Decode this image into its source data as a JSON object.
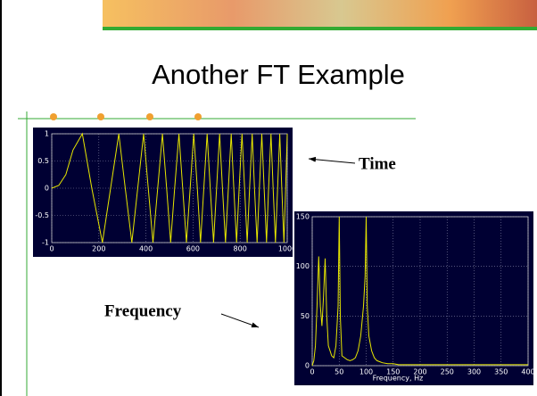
{
  "slide": {
    "title": "Another FT Example",
    "time_label": "Time",
    "frequency_label": "Frequency"
  },
  "chart_data": [
    {
      "type": "line",
      "color": "#e6e600",
      "grid": true,
      "x": [
        0,
        30,
        60,
        90,
        130,
        170,
        215,
        250,
        285,
        312,
        340,
        365,
        390,
        410,
        430,
        450,
        470,
        488,
        505,
        522,
        540,
        556,
        572,
        588,
        603,
        618,
        632,
        646,
        660,
        673,
        687,
        700,
        713,
        725,
        738,
        750,
        762,
        773,
        785,
        796,
        808,
        819,
        830,
        840,
        851,
        861,
        872,
        882,
        892,
        902,
        912,
        921,
        931,
        940,
        950,
        959,
        968,
        977,
        986,
        993,
        1000
      ],
      "values": [
        0,
        0.05,
        0.25,
        0.7,
        1,
        0,
        -1,
        0,
        1,
        0,
        -1,
        0,
        1,
        0,
        -1,
        0,
        1,
        0,
        -1,
        0,
        1,
        0,
        -1,
        0,
        1,
        0,
        -1,
        0,
        1,
        0,
        -1,
        0,
        1,
        0,
        -1,
        0,
        1,
        0,
        -1,
        0,
        1,
        0,
        -1,
        0,
        1,
        0,
        -1,
        0,
        1,
        0,
        -1,
        0,
        1,
        0,
        -1,
        0,
        1,
        0,
        -1,
        0,
        1
      ],
      "xlim": [
        0,
        1000
      ],
      "ylim": [
        -1,
        1
      ],
      "xticks": [
        0,
        200,
        400,
        600,
        800,
        1000
      ],
      "yticks": [
        -1,
        -0.5,
        0,
        0.5,
        1
      ]
    },
    {
      "type": "line",
      "color": "#e6e600",
      "grid": true,
      "xlabel": "Frequency, Hz",
      "x": [
        0,
        3,
        6,
        9,
        12,
        15,
        18,
        21,
        24,
        27,
        30,
        33,
        36,
        40,
        44,
        48,
        50,
        52,
        55,
        60,
        65,
        70,
        75,
        80,
        85,
        90,
        95,
        98,
        100,
        102,
        105,
        110,
        115,
        120,
        125,
        130,
        140,
        150,
        160,
        180,
        200,
        250,
        300,
        350,
        400
      ],
      "values": [
        0,
        5,
        20,
        60,
        110,
        60,
        40,
        70,
        108,
        50,
        20,
        15,
        10,
        8,
        20,
        60,
        150,
        50,
        10,
        8,
        6,
        5,
        6,
        8,
        15,
        30,
        60,
        90,
        150,
        60,
        30,
        15,
        8,
        5,
        4,
        3,
        2,
        2,
        1,
        1,
        1,
        1,
        1,
        1,
        1
      ],
      "xlim": [
        0,
        400
      ],
      "ylim": [
        0,
        150
      ],
      "xticks": [
        0,
        50,
        100,
        150,
        200,
        250,
        300,
        350,
        400
      ],
      "yticks": [
        0,
        50,
        100,
        150
      ]
    }
  ]
}
